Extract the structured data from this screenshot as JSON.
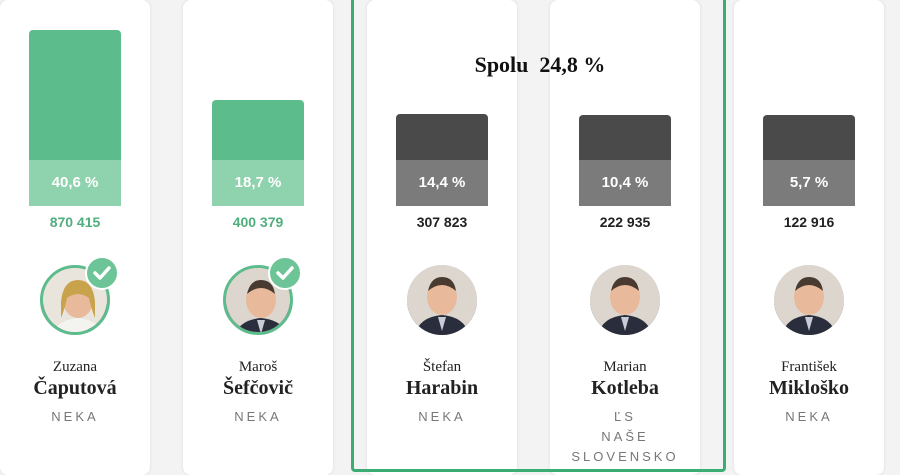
{
  "colors": {
    "winner": "#5dbc8c",
    "winner_label_bg": "#8ed2ae",
    "winner_text": "#4fae7e",
    "loser": "#4a4a4a",
    "loser_label_bg": "#7b7b7b",
    "group_border": "#3aae72"
  },
  "group_label": "Spolu  24,8 %",
  "chart_data": {
    "type": "bar",
    "categories": [
      "Zuzana Čaputová",
      "Maroš Šefčovič",
      "Štefan Harabin",
      "Marian Kotleba",
      "František Mikloško"
    ],
    "values": [
      40.6,
      18.7,
      14.4,
      10.4,
      5.7
    ],
    "votes": [
      870415,
      400379,
      307823,
      222935,
      122916
    ],
    "ylim": [
      0,
      45
    ]
  },
  "candidates": [
    {
      "pct_label": "40,6 %",
      "votes_label": "870 415",
      "first_name": "Zuzana",
      "last_name": "Čaputová",
      "party": "NEKA",
      "winner": true
    },
    {
      "pct_label": "18,7 %",
      "votes_label": "400 379",
      "first_name": "Maroš",
      "last_name": "Šefčovič",
      "party": "NEKA",
      "winner": true
    },
    {
      "pct_label": "14,4 %",
      "votes_label": "307 823",
      "first_name": "Štefan",
      "last_name": "Harabin",
      "party": "NEKA",
      "winner": false
    },
    {
      "pct_label": "10,4 %",
      "votes_label": "222 935",
      "first_name": "Marian",
      "last_name": "Kotleba",
      "party": "ĽS\nNAŠE\nSLOVENSKO",
      "winner": false
    },
    {
      "pct_label": "5,7 %",
      "votes_label": "122 916",
      "first_name": "František",
      "last_name": "Mikloško",
      "party": "NEKA",
      "winner": false
    }
  ]
}
